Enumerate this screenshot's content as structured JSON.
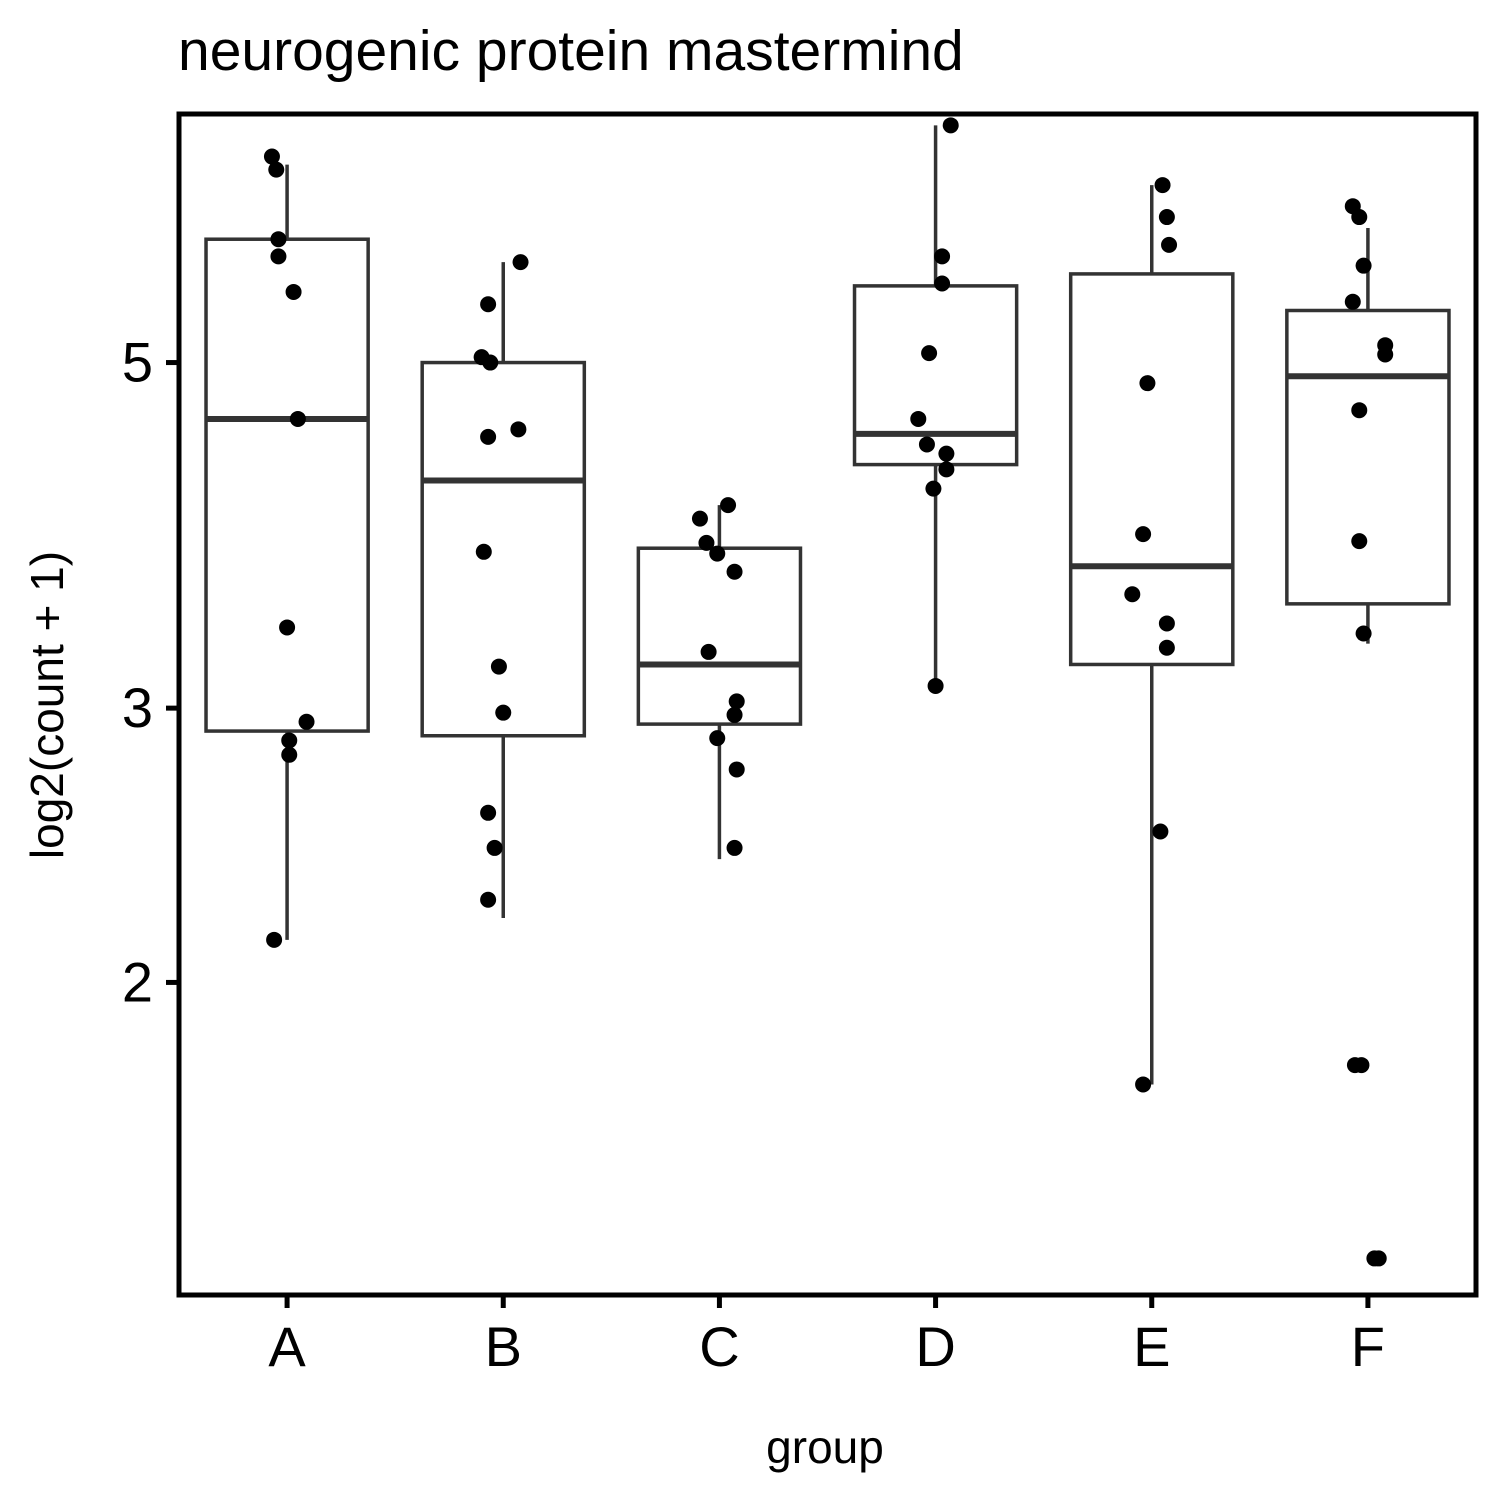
{
  "chart_data": {
    "type": "box",
    "title": "neurogenic protein mastermind",
    "xlabel": "group",
    "ylabel": "log2(count + 1)",
    "y_scale": "log2-spaced",
    "ylim": [
      1.26,
      7.22
    ],
    "yticks": [
      2,
      3,
      5
    ],
    "categories": [
      "A",
      "B",
      "C",
      "D",
      "E",
      "F"
    ],
    "grid": false,
    "legend": "none",
    "boxes": [
      {
        "group": "A",
        "whisker_low": 2.13,
        "q1": 2.9,
        "median": 4.6,
        "q3": 6.0,
        "whisker_high": 6.7
      },
      {
        "group": "B",
        "whisker_low": 2.2,
        "q1": 2.88,
        "median": 4.2,
        "q3": 5.0,
        "whisker_high": 5.8
      },
      {
        "group": "C",
        "whisker_low": 2.4,
        "q1": 2.93,
        "median": 3.2,
        "q3": 3.8,
        "whisker_high": 4.05
      },
      {
        "group": "D",
        "whisker_low": 3.1,
        "q1": 4.3,
        "median": 4.5,
        "q3": 5.6,
        "whisker_high": 7.1
      },
      {
        "group": "E",
        "whisker_low": 1.72,
        "q1": 3.2,
        "median": 3.7,
        "q3": 5.7,
        "whisker_high": 6.5
      },
      {
        "group": "F",
        "whisker_low": 3.3,
        "q1": 3.5,
        "median": 4.9,
        "q3": 5.4,
        "whisker_high": 6.1
      }
    ],
    "points": [
      {
        "group": "A",
        "dx": -0.07,
        "y": 6.78
      },
      {
        "group": "A",
        "dx": -0.05,
        "y": 6.65
      },
      {
        "group": "A",
        "dx": -0.04,
        "y": 6.0
      },
      {
        "group": "A",
        "dx": -0.04,
        "y": 5.85
      },
      {
        "group": "A",
        "dx": 0.03,
        "y": 5.55
      },
      {
        "group": "A",
        "dx": 0.05,
        "y": 4.6
      },
      {
        "group": "A",
        "dx": 0.0,
        "y": 3.38
      },
      {
        "group": "A",
        "dx": 0.09,
        "y": 2.94
      },
      {
        "group": "A",
        "dx": 0.01,
        "y": 2.86
      },
      {
        "group": "A",
        "dx": 0.01,
        "y": 2.8
      },
      {
        "group": "A",
        "dx": -0.06,
        "y": 2.13
      },
      {
        "group": "B",
        "dx": 0.08,
        "y": 5.8
      },
      {
        "group": "B",
        "dx": -0.07,
        "y": 5.45
      },
      {
        "group": "B",
        "dx": -0.1,
        "y": 5.04
      },
      {
        "group": "B",
        "dx": -0.06,
        "y": 5.0
      },
      {
        "group": "B",
        "dx": 0.07,
        "y": 4.53
      },
      {
        "group": "B",
        "dx": -0.07,
        "y": 4.48
      },
      {
        "group": "B",
        "dx": -0.09,
        "y": 3.78
      },
      {
        "group": "B",
        "dx": -0.02,
        "y": 3.19
      },
      {
        "group": "B",
        "dx": 0.0,
        "y": 2.98
      },
      {
        "group": "B",
        "dx": -0.07,
        "y": 2.57
      },
      {
        "group": "B",
        "dx": -0.04,
        "y": 2.44
      },
      {
        "group": "B",
        "dx": -0.07,
        "y": 2.26
      },
      {
        "group": "C",
        "dx": 0.04,
        "y": 4.05
      },
      {
        "group": "C",
        "dx": -0.09,
        "y": 3.97
      },
      {
        "group": "C",
        "dx": -0.06,
        "y": 3.83
      },
      {
        "group": "C",
        "dx": -0.01,
        "y": 3.77
      },
      {
        "group": "C",
        "dx": 0.07,
        "y": 3.67
      },
      {
        "group": "C",
        "dx": -0.05,
        "y": 3.26
      },
      {
        "group": "C",
        "dx": 0.08,
        "y": 3.03
      },
      {
        "group": "C",
        "dx": 0.07,
        "y": 2.97
      },
      {
        "group": "C",
        "dx": -0.01,
        "y": 2.87
      },
      {
        "group": "C",
        "dx": 0.08,
        "y": 2.74
      },
      {
        "group": "C",
        "dx": 0.07,
        "y": 2.44
      },
      {
        "group": "D",
        "dx": 0.07,
        "y": 7.1
      },
      {
        "group": "D",
        "dx": 0.03,
        "y": 5.85
      },
      {
        "group": "D",
        "dx": 0.03,
        "y": 5.62
      },
      {
        "group": "D",
        "dx": -0.03,
        "y": 5.07
      },
      {
        "group": "D",
        "dx": -0.08,
        "y": 4.6
      },
      {
        "group": "D",
        "dx": -0.04,
        "y": 4.43
      },
      {
        "group": "D",
        "dx": 0.05,
        "y": 4.37
      },
      {
        "group": "D",
        "dx": 0.05,
        "y": 4.27
      },
      {
        "group": "D",
        "dx": -0.01,
        "y": 4.15
      },
      {
        "group": "D",
        "dx": 0.0,
        "y": 3.1
      },
      {
        "group": "E",
        "dx": 0.05,
        "y": 6.5
      },
      {
        "group": "E",
        "dx": 0.07,
        "y": 6.2
      },
      {
        "group": "E",
        "dx": 0.08,
        "y": 5.95
      },
      {
        "group": "E",
        "dx": -0.02,
        "y": 4.85
      },
      {
        "group": "E",
        "dx": -0.04,
        "y": 3.88
      },
      {
        "group": "E",
        "dx": -0.09,
        "y": 3.55
      },
      {
        "group": "E",
        "dx": 0.07,
        "y": 3.4
      },
      {
        "group": "E",
        "dx": 0.07,
        "y": 3.28
      },
      {
        "group": "E",
        "dx": 0.04,
        "y": 2.5
      },
      {
        "group": "E",
        "dx": -0.04,
        "y": 1.72
      },
      {
        "group": "F",
        "dx": -0.07,
        "y": 6.3
      },
      {
        "group": "F",
        "dx": -0.04,
        "y": 6.2
      },
      {
        "group": "F",
        "dx": -0.02,
        "y": 5.77
      },
      {
        "group": "F",
        "dx": -0.07,
        "y": 5.47
      },
      {
        "group": "F",
        "dx": 0.08,
        "y": 5.13
      },
      {
        "group": "F",
        "dx": 0.08,
        "y": 5.06
      },
      {
        "group": "F",
        "dx": -0.04,
        "y": 4.66
      },
      {
        "group": "F",
        "dx": -0.04,
        "y": 3.84
      },
      {
        "group": "F",
        "dx": -0.02,
        "y": 3.35
      },
      {
        "group": "F",
        "dx": -0.06,
        "y": 1.77
      },
      {
        "group": "F",
        "dx": -0.03,
        "y": 1.77
      },
      {
        "group": "F",
        "dx": 0.03,
        "y": 1.33
      },
      {
        "group": "F",
        "dx": 0.05,
        "y": 1.33
      }
    ]
  }
}
